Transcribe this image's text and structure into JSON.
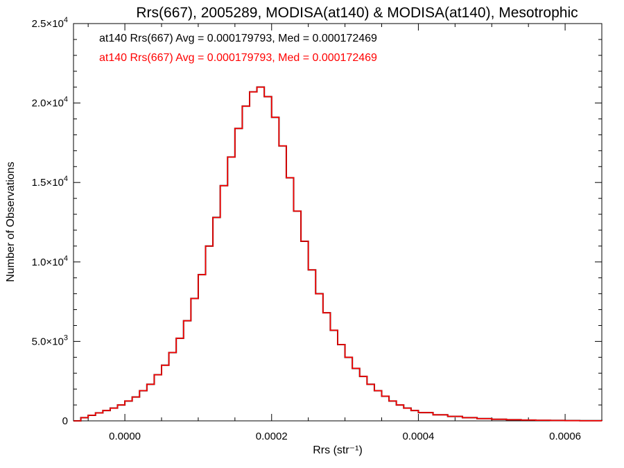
{
  "chart_data": {
    "type": "line",
    "title": "Rrs(667), 2005289, MODISA(at140) & MODISA(at140), Mesotrophic",
    "xlabel": "Rrs (str⁻¹)",
    "ylabel": "Number of Observations",
    "xlim": [
      -7e-05,
      0.00065
    ],
    "ylim": [
      0,
      25000
    ],
    "x_ticks": [
      0.0,
      0.0002,
      0.0004,
      0.0006
    ],
    "x_tick_labels": [
      "0.0000",
      "0.0002",
      "0.0004",
      "0.0006"
    ],
    "y_ticks": [
      0,
      5000,
      10000,
      15000,
      20000,
      25000
    ],
    "y_tick_labels": [
      {
        "mant": "0",
        "exp": ""
      },
      {
        "mant": "5.0×10",
        "exp": "3"
      },
      {
        "mant": "1.0×10",
        "exp": "4"
      },
      {
        "mant": "1.5×10",
        "exp": "4"
      },
      {
        "mant": "2.0×10",
        "exp": "4"
      },
      {
        "mant": "2.5×10",
        "exp": "4"
      }
    ],
    "grid": false,
    "legend_position": "top-left",
    "series": [
      {
        "label": "at140 Rrs(667) Avg = 0.000179793, Med = 0.000172469",
        "color": "#000000",
        "x": [
          -7e-05,
          -6e-05,
          -5e-05,
          -4e-05,
          -3e-05,
          -2e-05,
          -1e-05,
          0.0,
          1e-05,
          2e-05,
          3e-05,
          4e-05,
          5e-05,
          6e-05,
          7e-05,
          8e-05,
          9e-05,
          0.0001,
          0.00011,
          0.00012,
          0.00013,
          0.00014,
          0.00015,
          0.00016,
          0.00017,
          0.00018,
          0.00019,
          0.0002,
          0.00021,
          0.00022,
          0.00023,
          0.00024,
          0.00025,
          0.00026,
          0.00027,
          0.00028,
          0.00029,
          0.0003,
          0.00031,
          0.00032,
          0.00033,
          0.00034,
          0.00035,
          0.00036,
          0.00037,
          0.00038,
          0.00039,
          0.0004,
          0.00042,
          0.00044,
          0.00046,
          0.00048,
          0.0005,
          0.00052,
          0.00054,
          0.00056,
          0.00058,
          0.0006,
          0.00062,
          0.00065
        ],
        "y": [
          0,
          200,
          350,
          500,
          650,
          800,
          1000,
          1250,
          1500,
          1900,
          2300,
          2900,
          3500,
          4300,
          5200,
          6300,
          7700,
          9200,
          11000,
          12800,
          14800,
          16600,
          18400,
          19800,
          20700,
          21000,
          20400,
          19100,
          17300,
          15300,
          13200,
          11300,
          9500,
          8000,
          6800,
          5700,
          4800,
          4000,
          3300,
          2800,
          2300,
          1900,
          1550,
          1250,
          1000,
          800,
          650,
          520,
          380,
          280,
          200,
          140,
          100,
          70,
          50,
          35,
          25,
          15,
          10,
          0
        ]
      },
      {
        "label": "at140 Rrs(667) Avg = 0.000179793, Med = 0.000172469",
        "color": "#ff0000",
        "x": [
          -7e-05,
          -6e-05,
          -5e-05,
          -4e-05,
          -3e-05,
          -2e-05,
          -1e-05,
          0.0,
          1e-05,
          2e-05,
          3e-05,
          4e-05,
          5e-05,
          6e-05,
          7e-05,
          8e-05,
          9e-05,
          0.0001,
          0.00011,
          0.00012,
          0.00013,
          0.00014,
          0.00015,
          0.00016,
          0.00017,
          0.00018,
          0.00019,
          0.0002,
          0.00021,
          0.00022,
          0.00023,
          0.00024,
          0.00025,
          0.00026,
          0.00027,
          0.00028,
          0.00029,
          0.0003,
          0.00031,
          0.00032,
          0.00033,
          0.00034,
          0.00035,
          0.00036,
          0.00037,
          0.00038,
          0.00039,
          0.0004,
          0.00042,
          0.00044,
          0.00046,
          0.00048,
          0.0005,
          0.00052,
          0.00054,
          0.00056,
          0.00058,
          0.0006,
          0.00062,
          0.00065
        ],
        "y": [
          0,
          200,
          350,
          500,
          650,
          800,
          1000,
          1250,
          1500,
          1900,
          2300,
          2900,
          3500,
          4300,
          5200,
          6300,
          7700,
          9200,
          11000,
          12800,
          14800,
          16600,
          18400,
          19800,
          20700,
          21000,
          20400,
          19100,
          17300,
          15300,
          13200,
          11300,
          9500,
          8000,
          6800,
          5700,
          4800,
          4000,
          3300,
          2800,
          2300,
          1900,
          1550,
          1250,
          1000,
          800,
          650,
          520,
          380,
          280,
          200,
          140,
          100,
          70,
          50,
          35,
          25,
          15,
          10,
          0
        ]
      }
    ]
  }
}
